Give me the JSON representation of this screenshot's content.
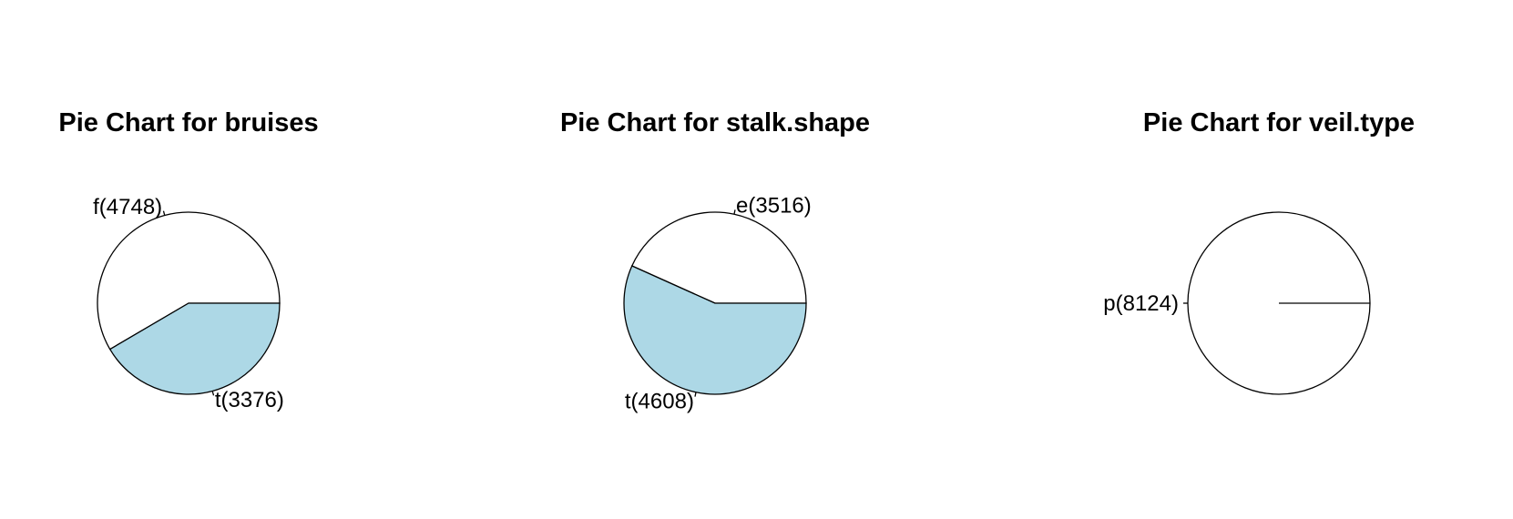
{
  "chart_data": [
    {
      "type": "pie",
      "title": "Pie Chart for bruises",
      "slices": [
        {
          "category": "f",
          "value": 4748,
          "label": "f(4748)",
          "color": "#ffffff"
        },
        {
          "category": "t",
          "value": 3376,
          "label": "t(3376)",
          "color": "#add8e6"
        }
      ]
    },
    {
      "type": "pie",
      "title": "Pie Chart for stalk.shape",
      "slices": [
        {
          "category": "e",
          "value": 3516,
          "label": "e(3516)",
          "color": "#ffffff"
        },
        {
          "category": "t",
          "value": 4608,
          "label": "t(4608)",
          "color": "#add8e6"
        }
      ]
    },
    {
      "type": "pie",
      "title": "Pie Chart for veil.type",
      "slices": [
        {
          "category": "p",
          "value": 8124,
          "label": "p(8124)",
          "color": "#ffffff"
        }
      ]
    }
  ]
}
